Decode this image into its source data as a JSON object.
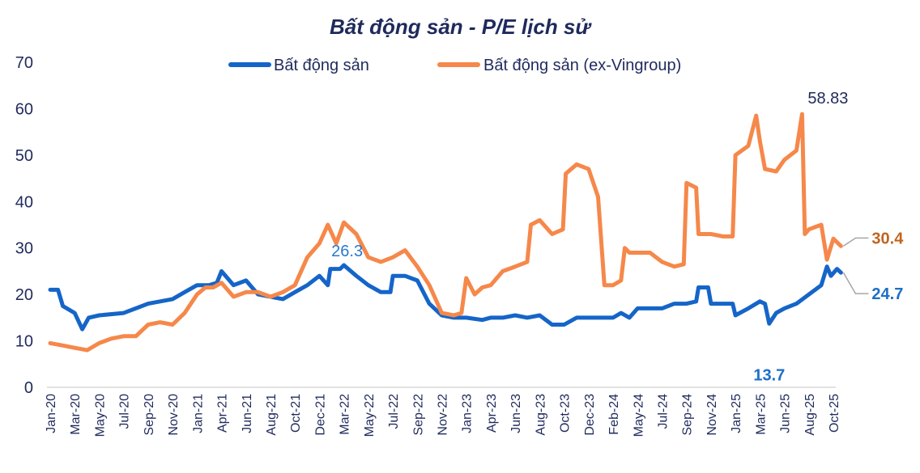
{
  "chart_data": {
    "type": "line",
    "title": "Bất động sản - P/E lịch sử",
    "xlabel": "",
    "ylabel": "",
    "ylim": [
      0,
      70
    ],
    "yticks": [
      0,
      10,
      20,
      30,
      40,
      50,
      60,
      70
    ],
    "grid": false,
    "legend_position": "top",
    "x_tick_labels": [
      "Jan-20",
      "Mar-20",
      "May-20",
      "Jul-20",
      "Sep-20",
      "Nov-20",
      "Jan-21",
      "Apr-21",
      "Jun-21",
      "Aug-21",
      "Oct-21",
      "Dec-21",
      "Mar-22",
      "May-22",
      "Jul-22",
      "Sep-22",
      "Nov-22",
      "Jan-23",
      "Apr-23",
      "Jun-23",
      "Aug-23",
      "Oct-23",
      "Dec-23",
      "Feb-24",
      "May-24",
      "Jul-24",
      "Sep-24",
      "Nov-24",
      "Jan-25",
      "Mar-25",
      "Jun-25",
      "Aug-25",
      "Oct-25"
    ],
    "x_tick_dates": [
      "2020-01-01",
      "2020-03-01",
      "2020-05-01",
      "2020-07-01",
      "2020-09-01",
      "2020-11-01",
      "2021-01-01",
      "2021-04-01",
      "2021-06-01",
      "2021-08-01",
      "2021-10-01",
      "2021-12-01",
      "2022-03-01",
      "2022-05-01",
      "2022-07-01",
      "2022-09-01",
      "2022-11-01",
      "2023-01-01",
      "2023-04-01",
      "2023-06-01",
      "2023-08-01",
      "2023-10-01",
      "2023-12-01",
      "2024-02-01",
      "2024-05-01",
      "2024-07-01",
      "2024-09-01",
      "2024-11-01",
      "2025-01-01",
      "2025-03-01",
      "2025-06-01",
      "2025-08-01",
      "2025-10-01"
    ],
    "series": [
      {
        "name": "Bất động sản",
        "color": "#1565c8",
        "points": [
          [
            "2020-01-01",
            21
          ],
          [
            "2020-01-20",
            21
          ],
          [
            "2020-02-01",
            17.5
          ],
          [
            "2020-03-01",
            16
          ],
          [
            "2020-03-20",
            12.5
          ],
          [
            "2020-04-05",
            15
          ],
          [
            "2020-05-01",
            15.5
          ],
          [
            "2020-07-01",
            16
          ],
          [
            "2020-09-01",
            18
          ],
          [
            "2020-11-01",
            19
          ],
          [
            "2020-12-01",
            20.5
          ],
          [
            "2021-01-01",
            22
          ],
          [
            "2021-02-15",
            22
          ],
          [
            "2021-03-15",
            22.5
          ],
          [
            "2021-04-01",
            25
          ],
          [
            "2021-05-01",
            22
          ],
          [
            "2021-06-01",
            23
          ],
          [
            "2021-07-01",
            20
          ],
          [
            "2021-08-01",
            19.5
          ],
          [
            "2021-09-01",
            19
          ],
          [
            "2021-10-01",
            20.5
          ],
          [
            "2021-11-01",
            22
          ],
          [
            "2021-12-01",
            24
          ],
          [
            "2022-01-01",
            22
          ],
          [
            "2022-01-10",
            25.5
          ],
          [
            "2022-02-15",
            25.5
          ],
          [
            "2022-03-01",
            26.3
          ],
          [
            "2022-04-01",
            24
          ],
          [
            "2022-05-01",
            22
          ],
          [
            "2022-06-01",
            20.5
          ],
          [
            "2022-06-25",
            20.5
          ],
          [
            "2022-07-01",
            24
          ],
          [
            "2022-08-01",
            24
          ],
          [
            "2022-09-01",
            23
          ],
          [
            "2022-10-01",
            18
          ],
          [
            "2022-11-01",
            15.5
          ],
          [
            "2022-12-01",
            15
          ],
          [
            "2023-01-01",
            15
          ],
          [
            "2023-03-01",
            14.5
          ],
          [
            "2023-04-01",
            15
          ],
          [
            "2023-05-01",
            15
          ],
          [
            "2023-06-01",
            15.5
          ],
          [
            "2023-07-01",
            15
          ],
          [
            "2023-08-01",
            15.5
          ],
          [
            "2023-09-01",
            13.5
          ],
          [
            "2023-10-01",
            13.5
          ],
          [
            "2023-11-01",
            15
          ],
          [
            "2023-12-01",
            15
          ],
          [
            "2024-01-01",
            15
          ],
          [
            "2024-02-01",
            15
          ],
          [
            "2024-03-01",
            16
          ],
          [
            "2024-04-01",
            15
          ],
          [
            "2024-05-01",
            17
          ],
          [
            "2024-06-01",
            17
          ],
          [
            "2024-07-01",
            17
          ],
          [
            "2024-08-01",
            18
          ],
          [
            "2024-09-01",
            18
          ],
          [
            "2024-09-25",
            18.5
          ],
          [
            "2024-10-01",
            21.5
          ],
          [
            "2024-10-25",
            21.5
          ],
          [
            "2024-11-01",
            18
          ],
          [
            "2024-12-01",
            18
          ],
          [
            "2024-12-25",
            18
          ],
          [
            "2025-01-01",
            15.5
          ],
          [
            "2025-02-01",
            17
          ],
          [
            "2025-03-01",
            18.5
          ],
          [
            "2025-03-20",
            18
          ],
          [
            "2025-04-05",
            13.7
          ],
          [
            "2025-05-01",
            16
          ],
          [
            "2025-06-01",
            17
          ],
          [
            "2025-07-01",
            18
          ],
          [
            "2025-08-01",
            20
          ],
          [
            "2025-09-01",
            22
          ],
          [
            "2025-09-15",
            26
          ],
          [
            "2025-09-25",
            24
          ],
          [
            "2025-10-10",
            25.5
          ],
          [
            "2025-10-20",
            24.7
          ]
        ]
      },
      {
        "name": "Bất động sản (ex-Vingroup)",
        "color": "#f5884a",
        "points": [
          [
            "2020-01-01",
            9.5
          ],
          [
            "2020-02-01",
            9
          ],
          [
            "2020-03-01",
            8.5
          ],
          [
            "2020-04-01",
            8
          ],
          [
            "2020-05-01",
            9.5
          ],
          [
            "2020-06-01",
            10.5
          ],
          [
            "2020-07-01",
            11
          ],
          [
            "2020-08-01",
            11
          ],
          [
            "2020-09-01",
            13.5
          ],
          [
            "2020-10-01",
            14
          ],
          [
            "2020-11-01",
            13.5
          ],
          [
            "2020-12-01",
            16
          ],
          [
            "2021-01-01",
            20
          ],
          [
            "2021-02-01",
            21.5
          ],
          [
            "2021-03-01",
            21.5
          ],
          [
            "2021-04-01",
            22.5
          ],
          [
            "2021-05-01",
            19.5
          ],
          [
            "2021-06-01",
            20.5
          ],
          [
            "2021-07-01",
            20.5
          ],
          [
            "2021-08-01",
            19.5
          ],
          [
            "2021-09-01",
            20.5
          ],
          [
            "2021-10-01",
            22
          ],
          [
            "2021-11-01",
            28
          ],
          [
            "2021-12-01",
            31
          ],
          [
            "2022-01-01",
            35
          ],
          [
            "2022-02-01",
            31
          ],
          [
            "2022-03-01",
            35.5
          ],
          [
            "2022-04-01",
            33
          ],
          [
            "2022-05-01",
            28
          ],
          [
            "2022-06-01",
            27
          ],
          [
            "2022-07-01",
            28
          ],
          [
            "2022-08-01",
            29.5
          ],
          [
            "2022-09-01",
            26
          ],
          [
            "2022-10-01",
            22
          ],
          [
            "2022-11-01",
            16
          ],
          [
            "2022-12-01",
            15.5
          ],
          [
            "2022-12-20",
            16
          ],
          [
            "2023-01-01",
            23.5
          ],
          [
            "2023-02-01",
            20
          ],
          [
            "2023-03-01",
            21.5
          ],
          [
            "2023-04-01",
            22
          ],
          [
            "2023-05-01",
            25
          ],
          [
            "2023-06-01",
            26
          ],
          [
            "2023-07-01",
            27
          ],
          [
            "2023-07-10",
            35
          ],
          [
            "2023-08-01",
            36
          ],
          [
            "2023-09-01",
            33
          ],
          [
            "2023-09-28",
            34
          ],
          [
            "2023-10-05",
            46
          ],
          [
            "2023-11-01",
            48
          ],
          [
            "2023-12-01",
            47
          ],
          [
            "2023-12-25",
            41
          ],
          [
            "2024-01-10",
            22
          ],
          [
            "2024-02-01",
            22
          ],
          [
            "2024-03-01",
            23
          ],
          [
            "2024-03-15",
            30
          ],
          [
            "2024-04-01",
            29
          ],
          [
            "2024-05-01",
            29
          ],
          [
            "2024-06-01",
            29
          ],
          [
            "2024-07-01",
            27
          ],
          [
            "2024-08-01",
            26
          ],
          [
            "2024-08-25",
            26.5
          ],
          [
            "2024-09-01",
            44
          ],
          [
            "2024-09-25",
            43
          ],
          [
            "2024-10-01",
            33
          ],
          [
            "2024-11-01",
            33
          ],
          [
            "2024-12-01",
            32.5
          ],
          [
            "2024-12-25",
            32.5
          ],
          [
            "2025-01-01",
            50
          ],
          [
            "2025-02-01",
            52
          ],
          [
            "2025-02-20",
            58.5
          ],
          [
            "2025-03-01",
            53
          ],
          [
            "2025-03-20",
            47
          ],
          [
            "2025-05-01",
            46.5
          ],
          [
            "2025-06-01",
            49
          ],
          [
            "2025-07-01",
            51
          ],
          [
            "2025-07-15",
            58.83
          ],
          [
            "2025-07-22",
            33
          ],
          [
            "2025-08-01",
            34
          ],
          [
            "2025-09-01",
            35
          ],
          [
            "2025-09-15",
            27.5
          ],
          [
            "2025-10-01",
            32
          ],
          [
            "2025-10-20",
            30.4
          ]
        ]
      }
    ],
    "annotations": [
      {
        "text": "26.3",
        "series": "Bất động sản",
        "date": "2022-03-01",
        "value": 26.3,
        "color": "#2a78cc"
      },
      {
        "text": "58.83",
        "series": "Bất động sản (ex-Vingroup)",
        "date": "2025-07-15",
        "value": 58.83,
        "color": "#1f2a5c"
      },
      {
        "text": "13.7",
        "series": "Bất động sản",
        "date": "2025-04-05",
        "value": 13.7,
        "color": "#1b6fc7"
      },
      {
        "text": "30.4",
        "series": "Bất động sản (ex-Vingroup)",
        "date": "2025-10-20",
        "value": 30.4,
        "color": "#c0651f"
      },
      {
        "text": "24.7",
        "series": "Bất động sản",
        "date": "2025-10-20",
        "value": 24.7,
        "color": "#1b6fc7"
      }
    ]
  }
}
